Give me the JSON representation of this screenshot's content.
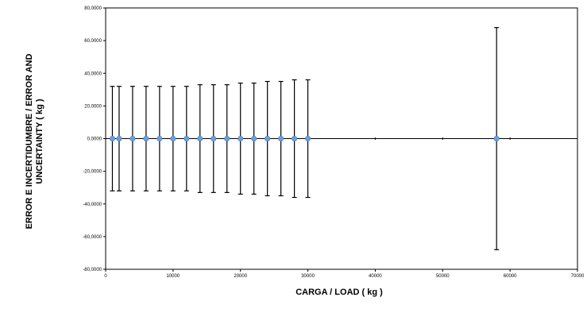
{
  "chart_data": {
    "type": "scatter",
    "title": "",
    "xlabel": "CARGA / LOAD ( kg )",
    "ylabel_lines": [
      "ERROR E INCERTIDUMBRE / ERROR AND",
      "UNCERTAINTY ( kg )"
    ],
    "xlim": [
      0,
      70000
    ],
    "ylim": [
      -80,
      80
    ],
    "x_ticks": [
      0,
      10000,
      20000,
      30000,
      40000,
      50000,
      60000,
      70000
    ],
    "x_tick_labels": [
      "0",
      "10000",
      "20000",
      "30000",
      "40000",
      "50000",
      "60000",
      "70000"
    ],
    "y_ticks": [
      80,
      60,
      40,
      20,
      0,
      -20,
      -40,
      -60,
      -80
    ],
    "y_tick_labels": [
      "80,0000",
      "60,0000",
      "40,0000",
      "20,0000",
      "0,0000",
      "-20,0000",
      "-40,0000",
      "-60,0000",
      "-80,0000"
    ],
    "grid": false,
    "legend": "none",
    "marker_color": "#6d9fd8",
    "line_color": "#000000",
    "series": [
      {
        "x": [
          1000,
          2000,
          4000,
          6000,
          8000,
          10000,
          12000,
          14000,
          16000,
          18000,
          20000,
          22000,
          24000,
          26000,
          28000,
          30000,
          58000
        ],
        "error": [
          0,
          0,
          0,
          0,
          0,
          0,
          0,
          0,
          0,
          0,
          0,
          0,
          0,
          0,
          0,
          0,
          0
        ],
        "uncertainty": [
          32,
          32,
          32,
          32,
          32,
          32,
          32,
          33,
          33,
          33,
          34,
          34,
          35,
          35,
          36,
          36,
          68
        ]
      }
    ]
  }
}
